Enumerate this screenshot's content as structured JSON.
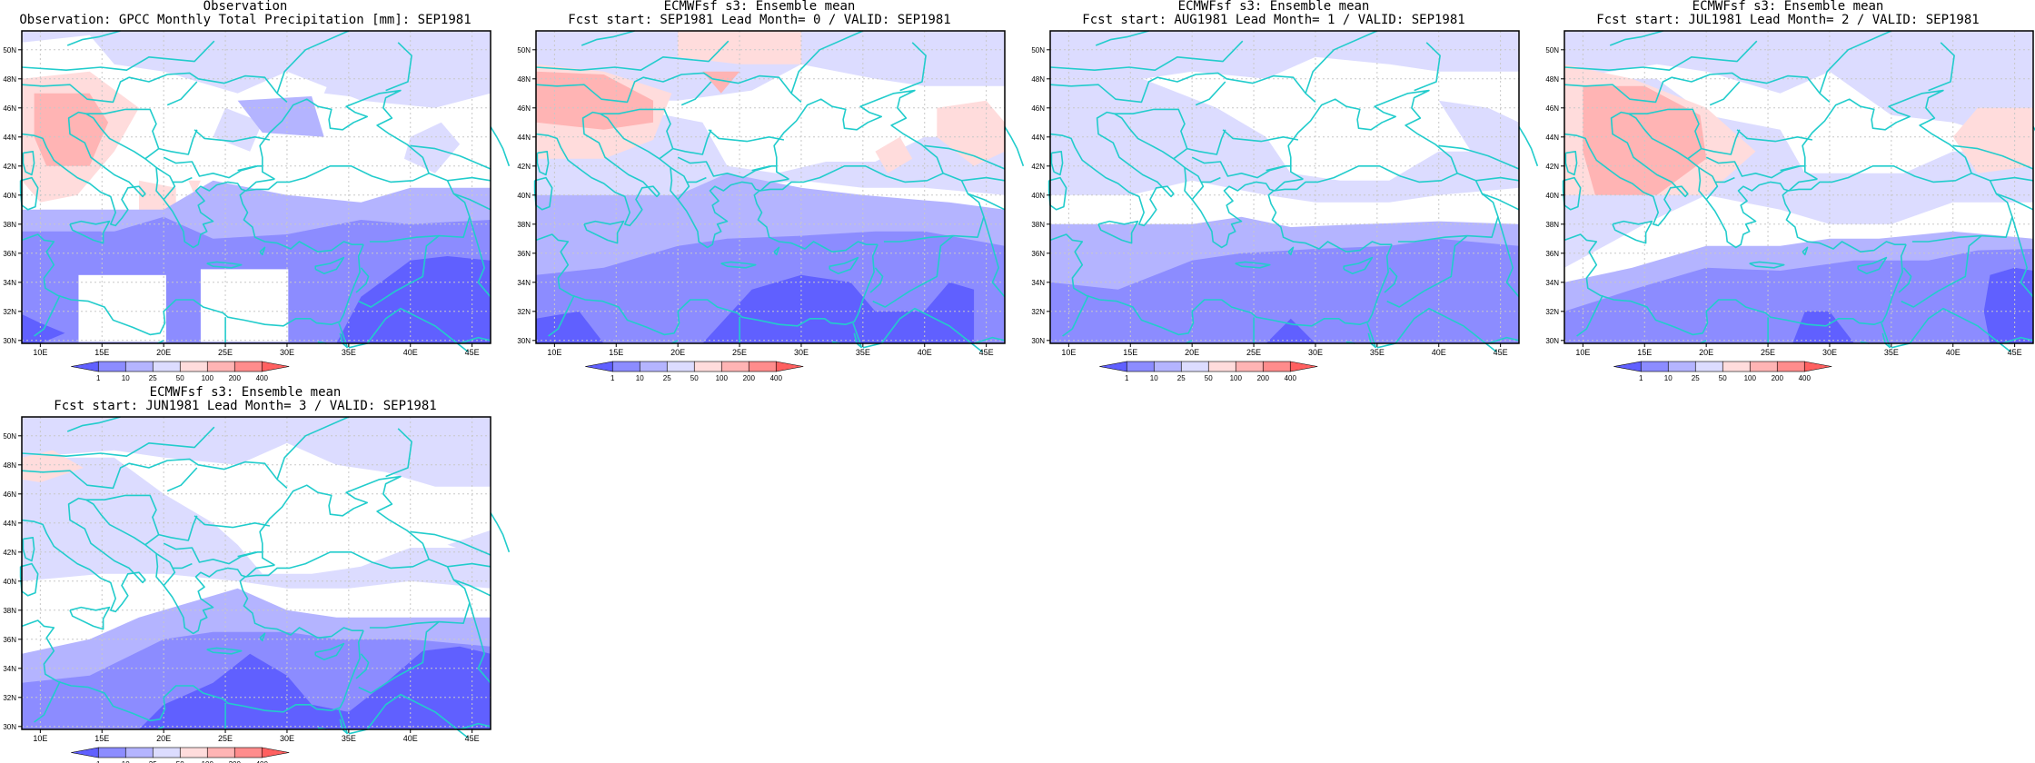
{
  "panels": [
    {
      "title": "Observation",
      "subtitle": "Observation: GPCC Monthly Total Precipitation [mm]: SEP1981",
      "kind": "observation"
    },
    {
      "title": "ECMWFsf s3: Ensemble mean",
      "subtitle": "Fcst start: SEP1981  Lead Month= 0 / VALID: SEP1981",
      "kind": "forecast-lead0"
    },
    {
      "title": "ECMWFsf s3: Ensemble mean",
      "subtitle": "Fcst start: AUG1981  Lead Month= 1 / VALID: SEP1981",
      "kind": "forecast-lead1"
    },
    {
      "title": "ECMWFsf s3: Ensemble mean",
      "subtitle": "Fcst start: JUL1981  Lead Month= 2 / VALID: SEP1981",
      "kind": "forecast-lead2"
    },
    {
      "title": "ECMWFsf s3: Ensemble mean",
      "subtitle": "Fcst start: JUN1981  Lead Month= 3 / VALID: SEP1981",
      "kind": "forecast-lead3"
    }
  ],
  "map_axes": {
    "lon_ticks": [
      "10E",
      "15E",
      "20E",
      "25E",
      "30E",
      "35E",
      "40E",
      "45E"
    ],
    "lat_ticks": [
      "30N",
      "32N",
      "34N",
      "36N",
      "38N",
      "40N",
      "42N",
      "44N",
      "46N",
      "48N",
      "50N"
    ],
    "lon_range": [
      8.5,
      46.5
    ],
    "lat_range": [
      29.8,
      51.3
    ]
  },
  "colorbar": {
    "labels": [
      "1",
      "10",
      "25",
      "50",
      "100",
      "200",
      "400"
    ],
    "colors": [
      "#6060ff",
      "#8c8cff",
      "#b4b4ff",
      "#dcdcff",
      "#ffdcdc",
      "#ffb4b4",
      "#ff8c8c",
      "#ff6060"
    ]
  },
  "style": {
    "coastline_color": "#22cccc",
    "grid_color": "#c8c8c8",
    "frame_color": "#000000"
  }
}
